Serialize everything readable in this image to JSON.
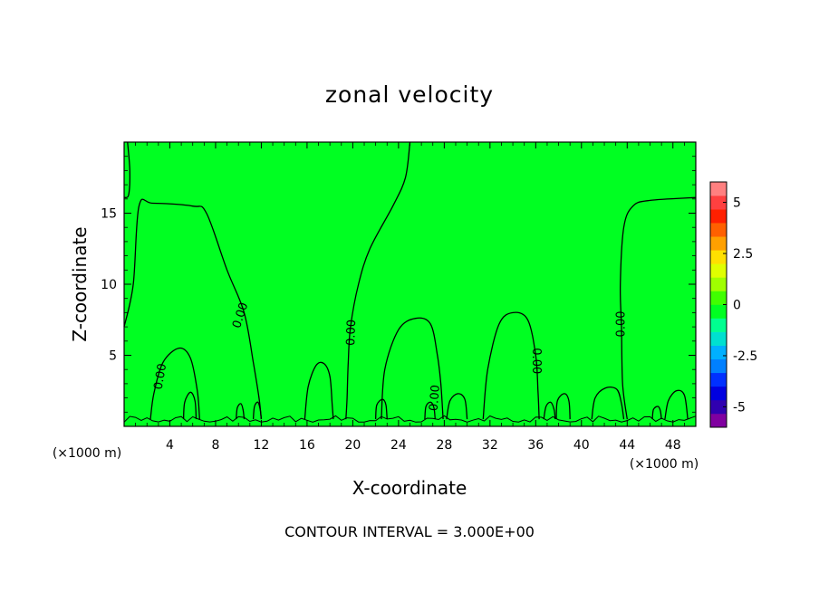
{
  "chart_data": {
    "type": "contour",
    "title": "zonal velocity",
    "xlabel": "X-coordinate",
    "ylabel": "Z-coordinate",
    "x_unit": "(×1000 m)",
    "y_unit": "(×1000 m)",
    "xlim": [
      0,
      50
    ],
    "ylim": [
      0,
      20
    ],
    "x_ticks": [
      4,
      8,
      12,
      16,
      20,
      24,
      28,
      32,
      36,
      40,
      44,
      48
    ],
    "y_ticks": [
      5,
      10,
      15
    ],
    "contour_interval_text": "CONTOUR INTERVAL = 3.000E+00",
    "contour_level_label": "0.00",
    "background_color": "#00ff22",
    "colorbar": {
      "range": [
        -6,
        6
      ],
      "tick_labels": [
        "5",
        "2.5",
        "0",
        "-2.5",
        "-5"
      ],
      "tick_values": [
        5,
        2.5,
        0,
        -2.5,
        -5
      ],
      "colors": [
        "#8000a0",
        "#3000b0",
        "#0000e0",
        "#0030ff",
        "#0080ff",
        "#00b0ff",
        "#00e0d0",
        "#00ff90",
        "#00ff22",
        "#40ff00",
        "#a0ff00",
        "#e0ff00",
        "#ffe000",
        "#ffa000",
        "#ff6000",
        "#ff2000",
        "#ff4040",
        "#ff8080"
      ]
    },
    "zero_contours": [
      [
        [
          0,
          7
        ],
        [
          0.8,
          10
        ],
        [
          1.3,
          15.5
        ],
        [
          2.5,
          15.7
        ],
        [
          6,
          15.5
        ],
        [
          7.2,
          15
        ],
        [
          9,
          11
        ],
        [
          10.5,
          8
        ],
        [
          11.3,
          4.5
        ],
        [
          11.8,
          2
        ],
        [
          12,
          0.5
        ]
      ],
      [
        [
          0.3,
          20
        ],
        [
          0.5,
          18
        ],
        [
          0.4,
          16.3
        ],
        [
          0,
          16.1
        ]
      ],
      [
        [
          25,
          20
        ],
        [
          24.6,
          17.5
        ],
        [
          23.5,
          15.5
        ],
        [
          21.5,
          12.5
        ],
        [
          20.5,
          10
        ],
        [
          19.8,
          7
        ],
        [
          19.6,
          4.5
        ],
        [
          19.5,
          2
        ],
        [
          19.4,
          0.5
        ]
      ],
      [
        [
          44,
          0.5
        ],
        [
          43.6,
          3
        ],
        [
          43.5,
          7
        ],
        [
          43.4,
          10
        ],
        [
          43.7,
          14
        ],
        [
          44.5,
          15.5
        ],
        [
          46,
          15.9
        ],
        [
          50,
          16.1
        ]
      ],
      [
        [
          22.5,
          0.5
        ],
        [
          22.8,
          4
        ],
        [
          24,
          6.8
        ],
        [
          25.5,
          7.6
        ],
        [
          26.8,
          7.2
        ],
        [
          27.4,
          5
        ],
        [
          27.7,
          3
        ],
        [
          27.9,
          0.5
        ]
      ],
      [
        [
          31.4,
          0.5
        ],
        [
          31.8,
          4
        ],
        [
          32.8,
          7.2
        ],
        [
          34,
          8
        ],
        [
          35.3,
          7.5
        ],
        [
          36,
          5
        ],
        [
          36.2,
          2.5
        ],
        [
          36.3,
          0.5
        ]
      ],
      [
        [
          2.3,
          0.5
        ],
        [
          2.6,
          2.3
        ],
        [
          3.4,
          4.5
        ],
        [
          4.8,
          5.5
        ],
        [
          5.8,
          4.8
        ],
        [
          6.4,
          2.5
        ],
        [
          6.6,
          0.5
        ]
      ],
      [
        [
          15.8,
          0.5
        ],
        [
          16.1,
          2.8
        ],
        [
          16.8,
          4.3
        ],
        [
          17.5,
          4.4
        ],
        [
          18,
          3.5
        ],
        [
          18.2,
          1.5
        ],
        [
          18.3,
          0.5
        ]
      ],
      [
        [
          40.9,
          0.5
        ],
        [
          41.2,
          2
        ],
        [
          42.1,
          2.7
        ],
        [
          43.1,
          2.6
        ],
        [
          43.5,
          1.6
        ],
        [
          43.7,
          0.5
        ]
      ],
      [
        [
          28.2,
          0.5
        ],
        [
          28.5,
          1.8
        ],
        [
          29.2,
          2.3
        ],
        [
          29.8,
          1.9
        ],
        [
          30,
          0.5
        ]
      ],
      [
        [
          47.3,
          0.5
        ],
        [
          47.6,
          1.8
        ],
        [
          48.3,
          2.5
        ],
        [
          49,
          2.2
        ],
        [
          49.3,
          0.5
        ]
      ],
      [
        [
          5.2,
          0.5
        ],
        [
          5.3,
          1.7
        ],
        [
          5.8,
          2.4
        ],
        [
          6.2,
          1.8
        ],
        [
          6.3,
          0.5
        ]
      ],
      [
        [
          36.7,
          0.5
        ],
        [
          36.9,
          1.4
        ],
        [
          37.3,
          1.7
        ],
        [
          37.6,
          1.2
        ],
        [
          37.7,
          0.5
        ]
      ],
      [
        [
          37.8,
          0.5
        ],
        [
          37.9,
          1.8
        ],
        [
          38.5,
          2.3
        ],
        [
          38.9,
          1.8
        ],
        [
          39,
          0.5
        ]
      ],
      [
        [
          22,
          0.5
        ],
        [
          22.1,
          1.5
        ],
        [
          22.6,
          1.9
        ],
        [
          22.9,
          1.5
        ],
        [
          23,
          0.5
        ]
      ],
      [
        [
          9.8,
          0.5
        ],
        [
          9.9,
          1.3
        ],
        [
          10.2,
          1.6
        ],
        [
          10.4,
          1.2
        ],
        [
          10.5,
          0.5
        ]
      ],
      [
        [
          11.3,
          0.5
        ],
        [
          11.4,
          1.4
        ],
        [
          11.7,
          1.7
        ],
        [
          11.9,
          1.2
        ],
        [
          12,
          0.5
        ]
      ],
      [
        [
          26.3,
          0.5
        ],
        [
          26.4,
          1.4
        ],
        [
          26.8,
          1.7
        ],
        [
          27.1,
          1.3
        ],
        [
          27.2,
          0.5
        ]
      ],
      [
        [
          46.2,
          0.5
        ],
        [
          46.3,
          1.2
        ],
        [
          46.7,
          1.4
        ],
        [
          46.9,
          1.1
        ],
        [
          47,
          0.5
        ]
      ]
    ],
    "contour_label_positions": [
      {
        "x": 10.2,
        "y": 7.8,
        "rotate": -72
      },
      {
        "x": 19.9,
        "y": 6.6,
        "rotate": -88
      },
      {
        "x": 3.2,
        "y": 3.5,
        "rotate": -80
      },
      {
        "x": 27.2,
        "y": 2,
        "rotate": -85
      },
      {
        "x": 36,
        "y": 4.6,
        "rotate": 90
      },
      {
        "x": 43.5,
        "y": 7.2,
        "rotate": -90
      }
    ]
  }
}
